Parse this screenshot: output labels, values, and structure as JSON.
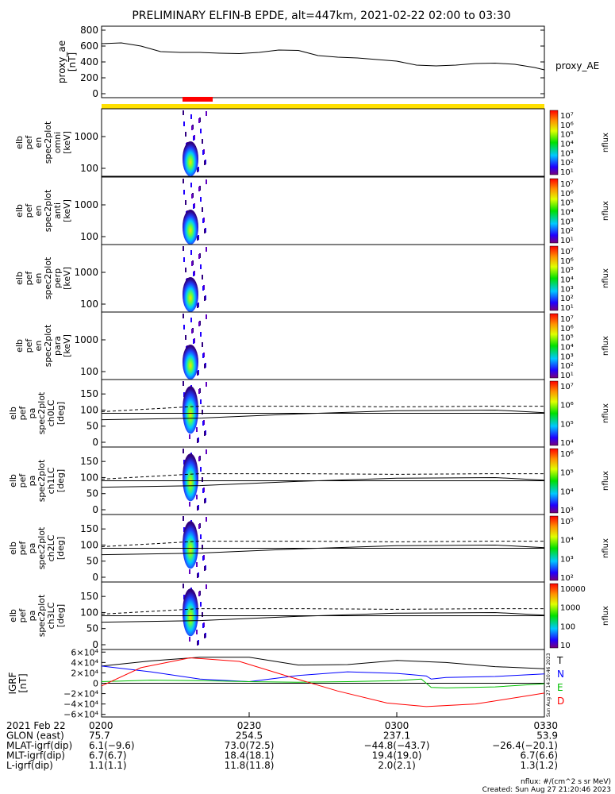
{
  "title": "PRELIMINARY ELFIN-B EPDE, alt=447km, 2021-02-22 02:00 to 03:30",
  "colors": {
    "yellow_bar": "#FFE000",
    "red_bar": "#FF0000"
  },
  "chart_data": [
    {
      "type": "line",
      "name": "proxy_ae",
      "ylabel": [
        "proxy_ae",
        "[nT]"
      ],
      "legend": "proxy_AE",
      "ylim": [
        -50,
        850
      ],
      "yticks": [
        0,
        200,
        400,
        600,
        800
      ],
      "x_minutes": [
        0,
        4,
        8,
        12,
        16,
        20,
        24,
        28,
        32,
        36,
        40,
        44,
        48,
        52,
        56,
        60,
        64,
        68,
        72,
        76,
        80,
        84,
        88,
        90
      ],
      "values": [
        630,
        640,
        600,
        530,
        520,
        520,
        510,
        505,
        520,
        550,
        545,
        480,
        460,
        450,
        430,
        410,
        360,
        350,
        360,
        380,
        385,
        370,
        330,
        300
      ]
    },
    {
      "type": "heatmap",
      "name": "omni",
      "ylabel": [
        "elb",
        "pef",
        "en",
        "spec2plot",
        "omni",
        "[keV]"
      ],
      "yticks": [
        "100",
        "1000"
      ],
      "cbar_ticks": [
        "10⁷",
        "10⁶",
        "10⁵",
        "10⁴",
        "10³",
        "10²",
        "10¹"
      ],
      "cbar_label": "nflux"
    },
    {
      "type": "heatmap",
      "name": "anti",
      "ylabel": [
        "elb",
        "pef",
        "en",
        "spec2plot",
        "anti",
        "[keV]"
      ],
      "yticks": [
        "100",
        "1000"
      ],
      "cbar_ticks": [
        "10⁷",
        "10⁶",
        "10⁵",
        "10⁴",
        "10³",
        "10²",
        "10¹"
      ],
      "cbar_label": "nflux"
    },
    {
      "type": "heatmap",
      "name": "perp",
      "ylabel": [
        "elb",
        "pef",
        "en",
        "spec2plot",
        "perp",
        "[keV]"
      ],
      "yticks": [
        "100",
        "1000"
      ],
      "cbar_ticks": [
        "10⁷",
        "10⁶",
        "10⁵",
        "10⁴",
        "10³",
        "10²",
        "10¹"
      ],
      "cbar_label": "nflux"
    },
    {
      "type": "heatmap",
      "name": "para",
      "ylabel": [
        "elb",
        "pef",
        "en",
        "spec2plot",
        "para",
        "[keV]"
      ],
      "yticks": [
        "100",
        "1000"
      ],
      "cbar_ticks": [
        "10⁷",
        "10⁶",
        "10⁵",
        "10⁴",
        "10³",
        "10²",
        "10¹"
      ],
      "cbar_label": "nflux"
    },
    {
      "type": "heatmap",
      "name": "ch0LC",
      "ylabel": [
        "elb",
        "pef",
        "pa",
        "spec2plot",
        "ch0LC",
        "[deg]"
      ],
      "ylim": [
        0,
        180
      ],
      "yticks": [
        0,
        50,
        100,
        150
      ],
      "cbar_ticks": [
        "10⁷",
        "10⁶",
        "10⁵",
        "10⁴"
      ],
      "cbar_label": "nflux"
    },
    {
      "type": "heatmap",
      "name": "ch1LC",
      "ylabel": [
        "elb",
        "pef",
        "pa",
        "spec2plot",
        "ch1LC",
        "[deg]"
      ],
      "ylim": [
        0,
        180
      ],
      "yticks": [
        0,
        50,
        100,
        150
      ],
      "cbar_ticks": [
        "10⁶",
        "10⁵",
        "10⁴",
        "10³"
      ],
      "cbar_label": "nflux"
    },
    {
      "type": "heatmap",
      "name": "ch2LC",
      "ylabel": [
        "elb",
        "pef",
        "pa",
        "spec2plot",
        "ch2LC",
        "[deg]"
      ],
      "ylim": [
        0,
        180
      ],
      "yticks": [
        0,
        50,
        100,
        150
      ],
      "cbar_ticks": [
        "10⁵",
        "10⁴",
        "10³",
        "10²"
      ],
      "cbar_label": "nflux"
    },
    {
      "type": "heatmap",
      "name": "ch3LC",
      "ylabel": [
        "elb",
        "pef",
        "pa",
        "spec2plot",
        "ch3LC",
        "[deg]"
      ],
      "ylim": [
        0,
        180
      ],
      "yticks": [
        0,
        50,
        100,
        150
      ],
      "cbar_ticks": [
        "10000",
        "1000",
        "100",
        "10"
      ],
      "cbar_label": "nflux"
    },
    {
      "type": "line",
      "name": "igrf",
      "ylabel": [
        "IGRF",
        "[nT]"
      ],
      "ylim": [
        -65000,
        65000
      ],
      "yticks": [
        "6×10⁴",
        "4×10⁴",
        "2×10⁴",
        "0",
        "−2×10⁴",
        "−4×10⁴",
        "−6×10⁴"
      ],
      "ytick_values": [
        60000,
        40000,
        20000,
        0,
        -20000,
        -40000,
        -60000
      ],
      "series": [
        {
          "name": "T",
          "color": "#000000",
          "x_minutes": [
            0,
            10,
            20,
            30,
            40,
            50,
            60,
            70,
            80,
            90
          ],
          "values": [
            33000,
            43000,
            50000,
            50000,
            35000,
            36000,
            44000,
            40000,
            32000,
            28000
          ]
        },
        {
          "name": "N",
          "color": "#0000FF",
          "x_minutes": [
            0,
            10,
            20,
            30,
            40,
            50,
            60,
            66,
            67,
            70,
            80,
            90
          ],
          "values": [
            33000,
            22000,
            8000,
            3000,
            15000,
            22000,
            19000,
            14000,
            8000,
            11000,
            13000,
            18000
          ]
        },
        {
          "name": "E",
          "color": "#00C000",
          "x_minutes": [
            0,
            10,
            20,
            30,
            40,
            50,
            60,
            65,
            67,
            70,
            80,
            90
          ],
          "values": [
            3000,
            6000,
            5000,
            3000,
            2000,
            3000,
            5000,
            8000,
            -8000,
            -9000,
            -7000,
            -1000
          ]
        },
        {
          "name": "D",
          "color": "#FF0000",
          "x_minutes": [
            0,
            8,
            18,
            28,
            38,
            48,
            58,
            66,
            76,
            86,
            90
          ],
          "values": [
            -5000,
            30000,
            49000,
            42000,
            13000,
            -15000,
            -38000,
            -45000,
            -40000,
            -25000,
            -19000
          ]
        }
      ]
    }
  ],
  "xaxis": {
    "row_labels": [
      "2021 Feb 22",
      "GLON (east)",
      "MLAT-igrf(dip)",
      "MLT-igrf(dip)",
      "L-igrf(dip)"
    ],
    "columns": [
      {
        "time": "0200",
        "values": [
          "75.7",
          "6.1(−9.6)",
          "6.7(6.7)",
          "1.1(1.1)"
        ]
      },
      {
        "time": "0230",
        "values": [
          "254.5",
          "73.0(72.5)",
          "18.4(18.1)",
          "11.8(11.8)"
        ]
      },
      {
        "time": "0300",
        "values": [
          "237.1",
          "−44.8(−43.7)",
          "19.4(19.0)",
          "2.0(2.1)"
        ]
      },
      {
        "time": "0330",
        "values": [
          "53.9",
          "−26.4(−20.1)",
          "6.7(6.6)",
          "1.3(1.2)"
        ]
      }
    ]
  },
  "footer": {
    "units": "nflux: #/(cm^2 s sr MeV)",
    "created": "Created: Sun Aug 27 21:20:46 2023",
    "stamp": "Sun Aug 27 14:20:46 2023"
  }
}
